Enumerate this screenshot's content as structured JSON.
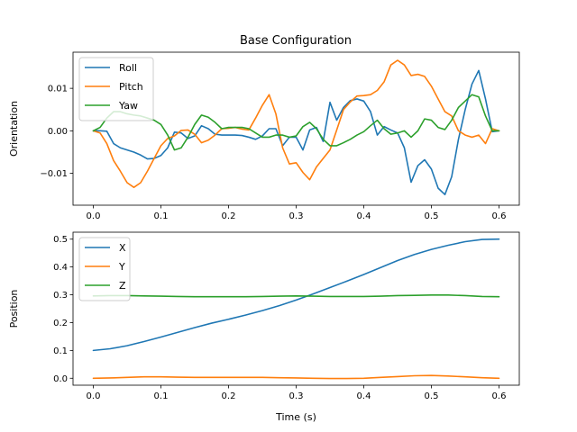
{
  "figure": {
    "title": "Base Configuration",
    "colors": {
      "blue": "#1f77b4",
      "orange": "#ff7f0e",
      "green": "#2ca02c"
    }
  },
  "chart_data": [
    {
      "type": "line",
      "title": "Base Configuration",
      "xlabel": "",
      "ylabel": "Orientation",
      "xlim": [
        -0.03,
        0.63
      ],
      "ylim": [
        -0.0175,
        0.0185
      ],
      "xticks": [
        0.0,
        0.1,
        0.2,
        0.3,
        0.4,
        0.5,
        0.6
      ],
      "xtick_labels": [
        "0.0",
        "0.1",
        "0.2",
        "0.3",
        "0.4",
        "0.5",
        "0.6"
      ],
      "yticks": [
        -0.01,
        0.0,
        0.01
      ],
      "ytick_labels": [
        "−0.01",
        "0.00",
        "0.01"
      ],
      "grid": false,
      "legend_position": "top-left",
      "series": [
        {
          "name": "Roll",
          "color": "#1f77b4",
          "x": [
            0.0,
            0.01,
            0.02,
            0.03,
            0.04,
            0.05,
            0.06,
            0.07,
            0.08,
            0.09,
            0.1,
            0.11,
            0.12,
            0.13,
            0.14,
            0.15,
            0.16,
            0.17,
            0.18,
            0.19,
            0.2,
            0.21,
            0.22,
            0.23,
            0.24,
            0.25,
            0.26,
            0.27,
            0.28,
            0.29,
            0.3,
            0.31,
            0.32,
            0.33,
            0.34,
            0.35,
            0.36,
            0.37,
            0.38,
            0.39,
            0.4,
            0.41,
            0.42,
            0.43,
            0.44,
            0.45,
            0.46,
            0.47,
            0.48,
            0.49,
            0.5,
            0.51,
            0.52,
            0.53,
            0.54,
            0.55,
            0.56,
            0.57,
            0.58,
            0.59,
            0.6
          ],
          "y": [
            0.0,
            0.0,
            -0.0001,
            -0.003,
            -0.004,
            -0.0045,
            -0.005,
            -0.0057,
            -0.0066,
            -0.0065,
            -0.0058,
            -0.004,
            -0.0003,
            -0.0005,
            -0.0018,
            -0.0012,
            0.0012,
            0.0005,
            -0.0008,
            -0.001,
            -0.001,
            -0.001,
            -0.0011,
            -0.0015,
            -0.002,
            -0.0012,
            0.0005,
            0.0005,
            -0.0035,
            -0.0015,
            -0.0015,
            -0.0045,
            0.0002,
            0.0008,
            -0.0025,
            0.0067,
            0.0025,
            0.0055,
            0.0071,
            0.0075,
            0.007,
            0.0045,
            -0.001,
            0.001,
            0.0002,
            -0.0005,
            -0.004,
            -0.0121,
            -0.0082,
            -0.0068,
            -0.009,
            -0.0135,
            -0.015,
            -0.0108,
            -0.002,
            0.005,
            0.011,
            0.0142,
            0.0075,
            -0.0002,
            0.0
          ]
        },
        {
          "name": "Pitch",
          "color": "#ff7f0e",
          "x": [
            0.0,
            0.01,
            0.02,
            0.03,
            0.04,
            0.05,
            0.06,
            0.07,
            0.08,
            0.09,
            0.1,
            0.11,
            0.12,
            0.13,
            0.14,
            0.15,
            0.16,
            0.17,
            0.18,
            0.19,
            0.2,
            0.21,
            0.22,
            0.23,
            0.24,
            0.25,
            0.26,
            0.27,
            0.28,
            0.29,
            0.3,
            0.31,
            0.32,
            0.33,
            0.34,
            0.35,
            0.36,
            0.37,
            0.38,
            0.39,
            0.4,
            0.41,
            0.42,
            0.43,
            0.44,
            0.45,
            0.46,
            0.47,
            0.48,
            0.49,
            0.5,
            0.51,
            0.52,
            0.53,
            0.54,
            0.55,
            0.56,
            0.57,
            0.58,
            0.59,
            0.6
          ],
          "y": [
            0.0,
            -0.0005,
            -0.003,
            -0.007,
            -0.0095,
            -0.0122,
            -0.0133,
            -0.0122,
            -0.0095,
            -0.0065,
            -0.0035,
            -0.0018,
            -0.0012,
            0.0001,
            0.0002,
            -0.0008,
            -0.0028,
            -0.0022,
            -0.001,
            0.0005,
            0.0006,
            0.0008,
            0.0004,
            0.0002,
            0.003,
            0.006,
            0.0085,
            0.004,
            -0.004,
            -0.0078,
            -0.0075,
            -0.0098,
            -0.0115,
            -0.0085,
            -0.0065,
            -0.0045,
            0.0002,
            0.005,
            0.0068,
            0.0082,
            0.0083,
            0.0085,
            0.0095,
            0.0115,
            0.0155,
            0.0166,
            0.0155,
            0.013,
            0.0133,
            0.0128,
            0.0105,
            0.0075,
            0.0045,
            0.0035,
            0.0,
            -0.001,
            -0.0015,
            -0.001,
            -0.003,
            0.0005,
            0.0
          ]
        },
        {
          "name": "Yaw",
          "color": "#2ca02c",
          "x": [
            0.0,
            0.01,
            0.02,
            0.03,
            0.04,
            0.05,
            0.06,
            0.07,
            0.08,
            0.09,
            0.1,
            0.11,
            0.12,
            0.13,
            0.14,
            0.15,
            0.16,
            0.17,
            0.18,
            0.19,
            0.2,
            0.21,
            0.22,
            0.23,
            0.24,
            0.25,
            0.26,
            0.27,
            0.28,
            0.29,
            0.3,
            0.31,
            0.32,
            0.33,
            0.34,
            0.35,
            0.36,
            0.37,
            0.38,
            0.39,
            0.4,
            0.41,
            0.42,
            0.43,
            0.44,
            0.45,
            0.46,
            0.47,
            0.48,
            0.49,
            0.5,
            0.51,
            0.52,
            0.53,
            0.54,
            0.55,
            0.56,
            0.57,
            0.58,
            0.59,
            0.6
          ],
          "y": [
            0.0,
            0.0008,
            0.003,
            0.0045,
            0.0045,
            0.004,
            0.0037,
            0.0035,
            0.003,
            0.0025,
            0.0015,
            -0.001,
            -0.0045,
            -0.004,
            -0.0015,
            0.0015,
            0.0037,
            0.0032,
            0.002,
            0.0005,
            0.0008,
            0.0008,
            0.0008,
            0.0005,
            -0.0005,
            -0.0015,
            -0.0015,
            -0.001,
            -0.001,
            -0.0015,
            -0.0012,
            0.001,
            0.002,
            0.0005,
            -0.002,
            -0.0035,
            -0.0035,
            -0.0028,
            -0.002,
            -0.001,
            -0.0002,
            0.0012,
            0.0025,
            0.0005,
            -0.0008,
            -0.0005,
            0.0,
            -0.0015,
            0.0,
            0.0028,
            0.0025,
            0.0008,
            0.0003,
            0.0025,
            0.0055,
            0.007,
            0.0085,
            0.008,
            0.0035,
            0.0,
            0.0
          ]
        }
      ]
    },
    {
      "type": "line",
      "title": "",
      "xlabel": "Time (s)",
      "ylabel": "Position",
      "xlim": [
        -0.03,
        0.63
      ],
      "ylim": [
        -0.025,
        0.525
      ],
      "xticks": [
        0.0,
        0.1,
        0.2,
        0.3,
        0.4,
        0.5,
        0.6
      ],
      "xtick_labels": [
        "0.0",
        "0.1",
        "0.2",
        "0.3",
        "0.4",
        "0.5",
        "0.6"
      ],
      "yticks": [
        0.0,
        0.1,
        0.2,
        0.3,
        0.4,
        0.5
      ],
      "ytick_labels": [
        "0.0",
        "0.1",
        "0.2",
        "0.3",
        "0.4",
        "0.5"
      ],
      "grid": false,
      "legend_position": "top-left",
      "series": [
        {
          "name": "X",
          "color": "#1f77b4",
          "x": [
            0.0,
            0.025,
            0.05,
            0.075,
            0.1,
            0.125,
            0.15,
            0.175,
            0.2,
            0.225,
            0.25,
            0.275,
            0.3,
            0.325,
            0.35,
            0.375,
            0.4,
            0.425,
            0.45,
            0.475,
            0.5,
            0.525,
            0.55,
            0.575,
            0.6
          ],
          "y": [
            0.1,
            0.106,
            0.117,
            0.132,
            0.148,
            0.165,
            0.182,
            0.198,
            0.212,
            0.227,
            0.243,
            0.261,
            0.281,
            0.303,
            0.326,
            0.349,
            0.373,
            0.398,
            0.423,
            0.445,
            0.463,
            0.478,
            0.491,
            0.499,
            0.5
          ]
        },
        {
          "name": "Y",
          "color": "#ff7f0e",
          "x": [
            0.0,
            0.025,
            0.05,
            0.075,
            0.1,
            0.125,
            0.15,
            0.175,
            0.2,
            0.225,
            0.25,
            0.275,
            0.3,
            0.325,
            0.35,
            0.375,
            0.4,
            0.425,
            0.45,
            0.475,
            0.5,
            0.525,
            0.55,
            0.575,
            0.6
          ],
          "y": [
            0.0,
            0.001,
            0.003,
            0.005,
            0.005,
            0.004,
            0.003,
            0.003,
            0.003,
            0.003,
            0.003,
            0.002,
            0.001,
            0.0,
            -0.001,
            -0.001,
            0.0,
            0.003,
            0.006,
            0.009,
            0.01,
            0.008,
            0.005,
            0.002,
            0.0
          ]
        },
        {
          "name": "Z",
          "color": "#2ca02c",
          "x": [
            0.0,
            0.025,
            0.05,
            0.075,
            0.1,
            0.125,
            0.15,
            0.175,
            0.2,
            0.225,
            0.25,
            0.275,
            0.3,
            0.325,
            0.35,
            0.375,
            0.4,
            0.425,
            0.45,
            0.475,
            0.5,
            0.525,
            0.55,
            0.575,
            0.6
          ],
          "y": [
            0.296,
            0.297,
            0.297,
            0.296,
            0.295,
            0.294,
            0.293,
            0.293,
            0.293,
            0.293,
            0.294,
            0.295,
            0.296,
            0.295,
            0.294,
            0.294,
            0.294,
            0.295,
            0.297,
            0.298,
            0.299,
            0.299,
            0.297,
            0.294,
            0.293
          ]
        }
      ]
    }
  ]
}
